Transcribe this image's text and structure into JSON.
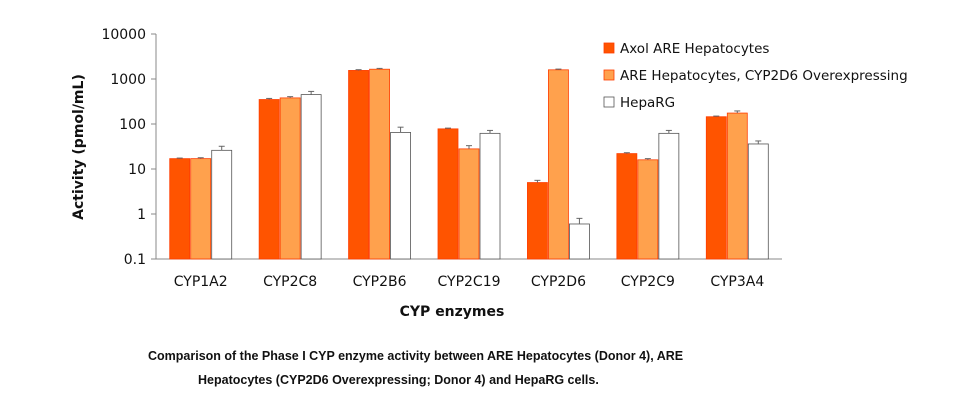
{
  "chart_data": {
    "type": "bar",
    "log_scale": true,
    "ylim": [
      0.1,
      10000
    ],
    "y_ticks": [
      "0.1",
      "1",
      "10",
      "100",
      "1000",
      "10000"
    ],
    "ylabel": "Activity (pmol/mL)",
    "xlabel": "CYP enzymes",
    "categories": [
      "CYP1A2",
      "CYP2C8",
      "CYP2B6",
      "CYP2C19",
      "CYP2D6",
      "CYP2C9",
      "CYP3A4"
    ],
    "series": [
      {
        "name": "Axol ARE Hepatocytes",
        "color": "#ff5400",
        "values": [
          17,
          350,
          1550,
          78,
          5,
          22,
          145
        ],
        "errors": [
          0.5,
          20,
          60,
          3,
          0.6,
          1,
          5
        ]
      },
      {
        "name": "ARE Hepatocytes, CYP2D6 Overexpressing",
        "color": "#ffa14d",
        "values": [
          17,
          380,
          1650,
          28,
          1600,
          16,
          175
        ],
        "errors": [
          0.8,
          25,
          70,
          5,
          60,
          1,
          20
        ]
      },
      {
        "name": "HepaRG",
        "color": "#ffffff",
        "values": [
          26,
          450,
          65,
          62,
          0.6,
          62,
          36
        ],
        "errors": [
          6,
          80,
          20,
          10,
          0.2,
          10,
          6
        ]
      }
    ],
    "legend_position": "top-right",
    "grid": false
  },
  "caption": {
    "line1": "Comparison of the Phase I CYP enzyme activity between ARE Hepatocytes (Donor 4), ARE",
    "line2": "Hepatocytes (CYP2D6 Overexpressing; Donor 4) and HepaRG cells."
  }
}
